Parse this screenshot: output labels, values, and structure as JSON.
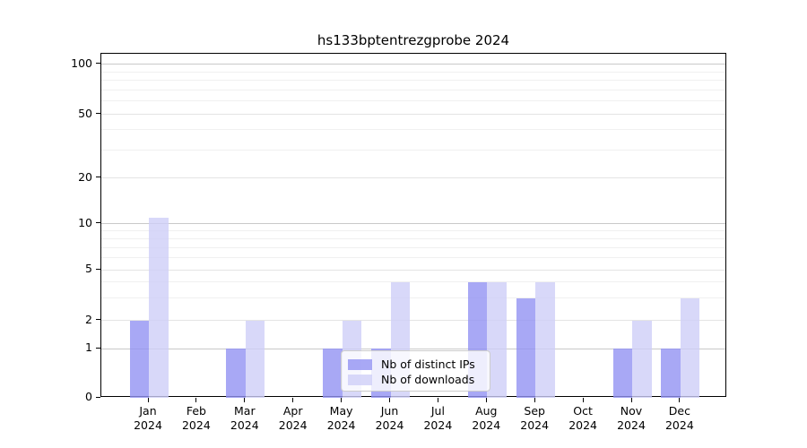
{
  "title": "hs133bptentrezgprobe 2024",
  "chart_data": {
    "type": "bar",
    "title": "hs133bptentrezgprobe 2024",
    "categories": [
      "Jan 2024",
      "Feb 2024",
      "Mar 2024",
      "Apr 2024",
      "May 2024",
      "Jun 2024",
      "Jul 2024",
      "Aug 2024",
      "Sep 2024",
      "Oct 2024",
      "Nov 2024",
      "Dec 2024"
    ],
    "series": [
      {
        "name": "Nb of distinct IPs",
        "color": "rgba(146,146,242,0.8)",
        "values": [
          2,
          0,
          1,
          0,
          1,
          1,
          0,
          4,
          3,
          0,
          1,
          1
        ]
      },
      {
        "name": "Nb of downloads",
        "color": "rgba(206,206,248,0.8)",
        "values": [
          11,
          0,
          2,
          0,
          2,
          4,
          0,
          4,
          4,
          0,
          2,
          3
        ]
      }
    ],
    "xlabel": "",
    "ylabel": "",
    "yaxis": {
      "scale": "symlog",
      "ticks": [
        0,
        1,
        2,
        5,
        10,
        20,
        50,
        100
      ],
      "minor_gridlines": [
        3,
        4,
        6,
        7,
        8,
        9,
        30,
        40,
        60,
        70,
        80,
        90
      ],
      "ylim": [
        0,
        115
      ]
    },
    "grid": "on",
    "legend": {
      "position": "lower center",
      "entries": [
        "Nb of distinct IPs",
        "Nb of downloads"
      ]
    },
    "colors": {
      "major_decade_gridline": "#c9c9c9",
      "labeled_gridline": "#e4e4e4",
      "minor_gridline": "#f0f0f0",
      "spine": "#000000"
    }
  }
}
